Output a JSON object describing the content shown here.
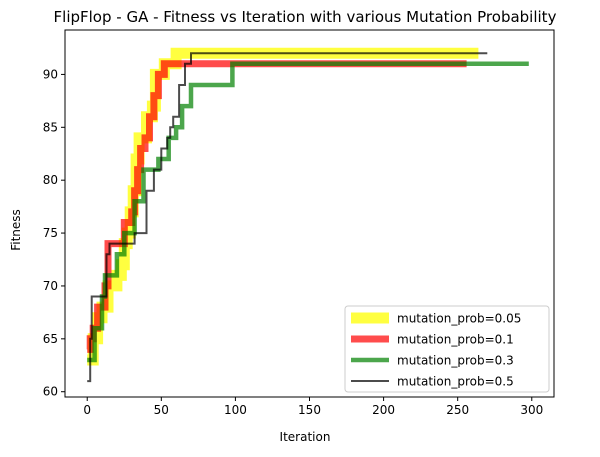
{
  "chart_data": {
    "type": "line",
    "title": "FlipFlop - GA - Fitness vs Iteration with various Mutation Probability",
    "xlabel": "Iteration",
    "ylabel": "Fitness",
    "xlim": [
      -15,
      315
    ],
    "ylim": [
      59.5,
      94.2
    ],
    "xticks": [
      0,
      50,
      100,
      150,
      200,
      250,
      300
    ],
    "yticks": [
      60,
      65,
      70,
      75,
      80,
      85,
      90
    ],
    "legend_position": "lower right",
    "grid": false,
    "series": [
      {
        "name": "mutation_prob=0.05",
        "color": "#ffff00",
        "opacity": 0.75,
        "width": 11,
        "points": [
          [
            0,
            63
          ],
          [
            4,
            63
          ],
          [
            4,
            65
          ],
          [
            7,
            65
          ],
          [
            7,
            67
          ],
          [
            10,
            67
          ],
          [
            10,
            68
          ],
          [
            14,
            68
          ],
          [
            14,
            70
          ],
          [
            20,
            70
          ],
          [
            20,
            71
          ],
          [
            23,
            71
          ],
          [
            23,
            72
          ],
          [
            25,
            72
          ],
          [
            25,
            74
          ],
          [
            27,
            74
          ],
          [
            27,
            75
          ],
          [
            29,
            75
          ],
          [
            29,
            77
          ],
          [
            31,
            77
          ],
          [
            31,
            79
          ],
          [
            33,
            79
          ],
          [
            33,
            82
          ],
          [
            35,
            82
          ],
          [
            35,
            84
          ],
          [
            40,
            84
          ],
          [
            40,
            86
          ],
          [
            44,
            86
          ],
          [
            44,
            87
          ],
          [
            46,
            87
          ],
          [
            46,
            90
          ],
          [
            52,
            90
          ],
          [
            52,
            91
          ],
          [
            60,
            91
          ],
          [
            60,
            92
          ],
          [
            264,
            92
          ]
        ]
      },
      {
        "name": "mutation_prob=0.1",
        "color": "#ff0000",
        "opacity": 0.7,
        "width": 7,
        "points": [
          [
            0,
            64
          ],
          [
            2,
            64
          ],
          [
            2,
            65
          ],
          [
            4,
            65
          ],
          [
            4,
            66
          ],
          [
            7,
            66
          ],
          [
            7,
            68
          ],
          [
            12,
            68
          ],
          [
            12,
            70
          ],
          [
            14,
            70
          ],
          [
            14,
            74
          ],
          [
            25,
            74
          ],
          [
            25,
            76
          ],
          [
            30,
            76
          ],
          [
            30,
            77
          ],
          [
            32,
            77
          ],
          [
            32,
            79
          ],
          [
            34,
            79
          ],
          [
            34,
            81
          ],
          [
            36,
            81
          ],
          [
            36,
            83
          ],
          [
            39,
            83
          ],
          [
            39,
            84
          ],
          [
            42,
            84
          ],
          [
            42,
            86
          ],
          [
            45,
            86
          ],
          [
            45,
            88
          ],
          [
            48,
            88
          ],
          [
            48,
            90
          ],
          [
            52,
            90
          ],
          [
            52,
            91
          ],
          [
            256,
            91
          ]
        ]
      },
      {
        "name": "mutation_prob=0.3",
        "color": "#008000",
        "opacity": 0.7,
        "width": 4.5,
        "points": [
          [
            0,
            63
          ],
          [
            5,
            63
          ],
          [
            5,
            66
          ],
          [
            10,
            66
          ],
          [
            10,
            69
          ],
          [
            12,
            69
          ],
          [
            12,
            71
          ],
          [
            20,
            71
          ],
          [
            20,
            73
          ],
          [
            25,
            73
          ],
          [
            25,
            75
          ],
          [
            32,
            75
          ],
          [
            32,
            78
          ],
          [
            38,
            78
          ],
          [
            38,
            81
          ],
          [
            48,
            81
          ],
          [
            48,
            82
          ],
          [
            55,
            82
          ],
          [
            55,
            84
          ],
          [
            60,
            84
          ],
          [
            60,
            85
          ],
          [
            64,
            85
          ],
          [
            64,
            87
          ],
          [
            70,
            87
          ],
          [
            70,
            89
          ],
          [
            98,
            89
          ],
          [
            98,
            91
          ],
          [
            298,
            91
          ]
        ]
      },
      {
        "name": "mutation_prob=0.5",
        "color": "#000000",
        "opacity": 0.7,
        "width": 2,
        "points": [
          [
            0,
            61
          ],
          [
            2,
            61
          ],
          [
            2,
            65
          ],
          [
            3,
            65
          ],
          [
            3,
            69
          ],
          [
            13,
            69
          ],
          [
            13,
            73
          ],
          [
            15,
            73
          ],
          [
            15,
            74
          ],
          [
            32,
            74
          ],
          [
            32,
            75
          ],
          [
            40,
            75
          ],
          [
            40,
            79
          ],
          [
            45,
            79
          ],
          [
            45,
            81
          ],
          [
            50,
            81
          ],
          [
            50,
            83
          ],
          [
            54,
            83
          ],
          [
            54,
            84
          ],
          [
            56,
            84
          ],
          [
            56,
            85
          ],
          [
            58,
            85
          ],
          [
            58,
            86
          ],
          [
            62,
            86
          ],
          [
            62,
            89
          ],
          [
            66,
            89
          ],
          [
            66,
            91
          ],
          [
            70,
            91
          ],
          [
            70,
            92
          ],
          [
            270,
            92
          ]
        ]
      }
    ]
  }
}
